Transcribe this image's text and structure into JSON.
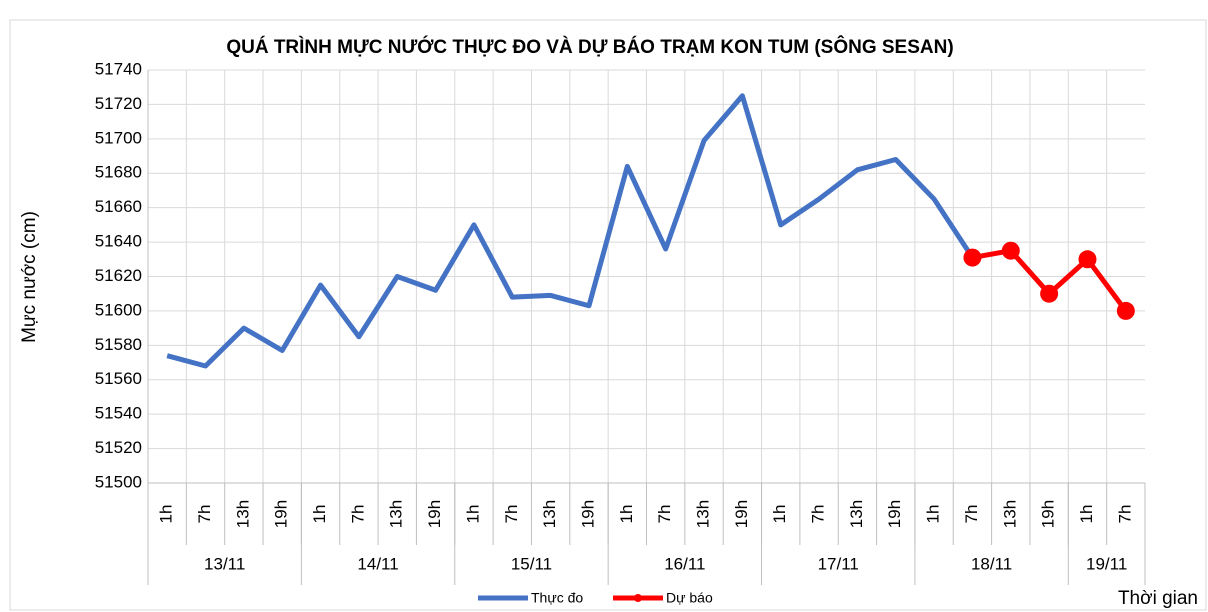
{
  "chart_data": {
    "type": "line",
    "title": "QUÁ TRÌNH MỰC NƯỚC THỰC ĐO VÀ DỰ BÁO TRẠM KON TUM (SÔNG SESAN)",
    "y_label": "Mực nước (cm)",
    "x_label": "Thời gian",
    "groups": [
      {
        "label": "13/11",
        "categories": [
          "1h",
          "7h",
          "13h",
          "19h"
        ]
      },
      {
        "label": "14/11",
        "categories": [
          "1h",
          "7h",
          "13h",
          "19h"
        ]
      },
      {
        "label": "15/11",
        "categories": [
          "1h",
          "7h",
          "13h",
          "19h"
        ]
      },
      {
        "label": "16/11",
        "categories": [
          "1h",
          "7h",
          "13h",
          "19h"
        ]
      },
      {
        "label": "17/11",
        "categories": [
          "1h",
          "7h",
          "13h",
          "19h"
        ]
      },
      {
        "label": "18/11",
        "categories": [
          "1h",
          "7h",
          "13h",
          "19h"
        ]
      },
      {
        "label": "19/11",
        "categories": [
          "1h",
          "7h"
        ]
      }
    ],
    "series": [
      {
        "name": "Thực đo",
        "color": "#4472c4",
        "markers": false,
        "values": [
          51574,
          51568,
          51590,
          51577,
          51615,
          51585,
          51620,
          51612,
          51650,
          51608,
          51609,
          51603,
          51684,
          51636,
          51699,
          51725,
          51650,
          51665,
          51682,
          51688,
          51665,
          51631,
          null,
          null,
          null,
          null
        ]
      },
      {
        "name": "Dự báo",
        "color": "#ff0000",
        "markers": true,
        "values": [
          null,
          null,
          null,
          null,
          null,
          null,
          null,
          null,
          null,
          null,
          null,
          null,
          null,
          null,
          null,
          null,
          null,
          null,
          null,
          null,
          null,
          51631,
          51635,
          51610,
          51630,
          51600
        ]
      }
    ],
    "ylim": [
      51500,
      51740
    ],
    "yticks": [
      51500,
      51520,
      51540,
      51560,
      51580,
      51600,
      51620,
      51640,
      51660,
      51680,
      51700,
      51720,
      51740
    ],
    "grid": true,
    "legend": "bottom"
  }
}
